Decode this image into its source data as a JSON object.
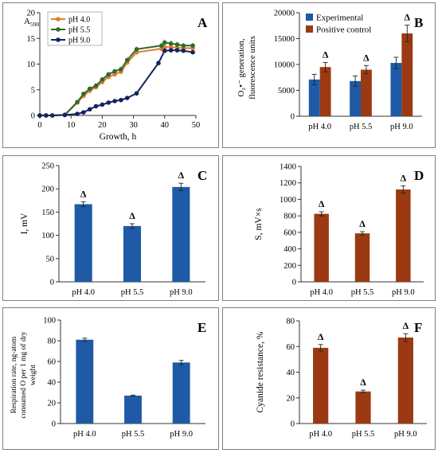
{
  "colors": {
    "blue": "#1f5aa6",
    "brown": "#9b3a12",
    "orange": "#e07b2e",
    "green": "#2e6a2b",
    "navy": "#13235e",
    "axis": "#333333"
  },
  "chart_data": [
    {
      "id": "A",
      "type": "line",
      "panel_label": "A",
      "ylabel": "A",
      "ylabel_sub": "590",
      "xlabel": "Growth, h",
      "xlim": [
        0,
        50
      ],
      "ylim": [
        0,
        20
      ],
      "xticks": [
        0,
        10,
        20,
        30,
        40,
        50
      ],
      "yticks": [
        0,
        5,
        10,
        15,
        20
      ],
      "xtick_labels": [
        "0",
        "10",
        "20",
        "30",
        "40",
        "50"
      ],
      "ytick_labels": [
        "0",
        "5",
        "10",
        "15",
        "20"
      ],
      "grid": false,
      "legend_position": "top-left",
      "series": [
        {
          "name": "pH 4.0",
          "color_key": "orange",
          "x": [
            0,
            2,
            4,
            8,
            12,
            14,
            16,
            18,
            20,
            22,
            24,
            26,
            28,
            31,
            39,
            40,
            42,
            44,
            46,
            49
          ],
          "y": [
            0,
            0,
            0,
            0.1,
            2.5,
            3.8,
            4.8,
            5.5,
            6.5,
            7.5,
            8.0,
            8.5,
            10.3,
            12.3,
            13.0,
            13.3,
            13.3,
            13.2,
            13.1,
            13.1
          ],
          "err": [
            0,
            0,
            0,
            0,
            0.2,
            0.3,
            0.3,
            0.3,
            0.3,
            0.4,
            0.4,
            0.4,
            0.4,
            0.5,
            0.6,
            0.6,
            0.6,
            0.6,
            0.5,
            0.5
          ]
        },
        {
          "name": "pH 5.5",
          "color_key": "green",
          "x": [
            0,
            2,
            4,
            8,
            12,
            14,
            16,
            18,
            20,
            22,
            24,
            26,
            28,
            31,
            39,
            40,
            42,
            44,
            46,
            49
          ],
          "y": [
            0,
            0,
            0,
            0.1,
            2.6,
            4.2,
            5.2,
            5.8,
            7.0,
            8.0,
            8.6,
            9.0,
            10.8,
            12.9,
            13.6,
            14.2,
            14.0,
            13.8,
            13.6,
            13.6
          ],
          "err": [
            0,
            0,
            0,
            0,
            0.2,
            0.3,
            0.3,
            0.3,
            0.3,
            0.4,
            0.4,
            0.4,
            0.4,
            0.5,
            0.6,
            0.6,
            0.6,
            0.6,
            0.5,
            0.5
          ]
        },
        {
          "name": "pH 9.0",
          "color_key": "navy",
          "x": [
            0,
            2,
            4,
            8,
            12,
            14,
            16,
            18,
            20,
            22,
            24,
            26,
            28,
            31,
            38,
            40,
            42,
            44,
            46,
            49
          ],
          "y": [
            0,
            0,
            0,
            0.1,
            0.3,
            0.6,
            1.2,
            1.8,
            2.1,
            2.5,
            2.8,
            3.0,
            3.4,
            4.3,
            10.2,
            12.6,
            12.7,
            12.7,
            12.6,
            12.3
          ],
          "err": [
            0,
            0,
            0,
            0,
            0.1,
            0.1,
            0.1,
            0.2,
            0.2,
            0.2,
            0.2,
            0.2,
            0.2,
            0.3,
            0.4,
            0.4,
            0.4,
            0.4,
            0.4,
            0.4
          ]
        }
      ]
    },
    {
      "id": "B",
      "type": "bar",
      "panel_label": "B",
      "ylabel_line1": "O₂•⁻ generation,",
      "ylabel_line2": "fluorescence units",
      "categories": [
        "pH 4.0",
        "pH 5.5",
        "pH 9.0"
      ],
      "ylim": [
        0,
        20000
      ],
      "yticks": [
        0,
        5000,
        10000,
        15000,
        20000
      ],
      "ytick_labels": [
        "0",
        "5000",
        "10000",
        "15000",
        "20000"
      ],
      "legend_position": "top-left",
      "series": [
        {
          "name": "Experimental",
          "color_key": "blue",
          "values": [
            7100,
            6800,
            10300
          ],
          "err": [
            1000,
            1000,
            1100
          ]
        },
        {
          "name": "Positive control",
          "color_key": "brown",
          "values": [
            9500,
            9000,
            16000
          ],
          "err": [
            900,
            800,
            1600
          ]
        }
      ],
      "markers": [
        "Δ",
        "Δ",
        "Δ"
      ],
      "marker_series": 1
    },
    {
      "id": "C",
      "type": "bar",
      "panel_label": "C",
      "ylabel": "I, mV",
      "categories": [
        "pH 4.0",
        "pH 5.5",
        "pH 9.0"
      ],
      "values": [
        167,
        120,
        204
      ],
      "err": [
        5,
        5,
        8
      ],
      "color_key": "blue",
      "ylim": [
        0,
        250
      ],
      "yticks": [
        0,
        50,
        100,
        150,
        200,
        250
      ],
      "ytick_labels": [
        "0",
        "50",
        "100",
        "150",
        "200",
        "250"
      ],
      "markers": [
        "Δ",
        "Δ",
        "Δ"
      ]
    },
    {
      "id": "D",
      "type": "bar",
      "panel_label": "D",
      "ylabel": "S, mV×s",
      "categories": [
        "pH 4.0",
        "pH 5.5",
        "pH 9.0"
      ],
      "values": [
        825,
        588,
        1120
      ],
      "err": [
        25,
        20,
        45
      ],
      "color_key": "brown",
      "ylim": [
        0,
        1400
      ],
      "yticks": [
        0,
        200,
        400,
        600,
        800,
        1000,
        1200,
        1400
      ],
      "ytick_labels": [
        "0",
        "200",
        "400",
        "600",
        "800",
        "1000",
        "1200",
        "1400"
      ],
      "markers": [
        "Δ",
        "Δ",
        "Δ"
      ]
    },
    {
      "id": "E",
      "type": "bar",
      "panel_label": "E",
      "ylabel_lines": [
        "Respiration rate, ng-atom",
        "consumed O per 1 mg of dry",
        "weight"
      ],
      "categories": [
        "pH 4.0",
        "pH 5.5",
        "pH 9.0"
      ],
      "values": [
        81,
        27,
        59
      ],
      "err": [
        1.5,
        0.5,
        2
      ],
      "color_key": "blue",
      "ylim": [
        0,
        100
      ],
      "yticks": [
        0,
        20,
        40,
        60,
        80,
        100
      ],
      "ytick_labels": [
        "0",
        "20",
        "40",
        "60",
        "80",
        "100"
      ],
      "markers": []
    },
    {
      "id": "F",
      "type": "bar",
      "panel_label": "F",
      "ylabel": "Cyanide resistance, %",
      "categories": [
        "pH 4.0",
        "pH 5.5",
        "pH 9.0"
      ],
      "values": [
        59,
        25,
        67
      ],
      "err": [
        2.5,
        1,
        3
      ],
      "color_key": "brown",
      "ylim": [
        0,
        80
      ],
      "yticks": [
        0,
        20,
        40,
        60,
        80
      ],
      "ytick_labels": [
        "0",
        "20",
        "40",
        "60",
        "80"
      ],
      "markers": [
        "Δ",
        "Δ",
        "Δ"
      ]
    }
  ]
}
